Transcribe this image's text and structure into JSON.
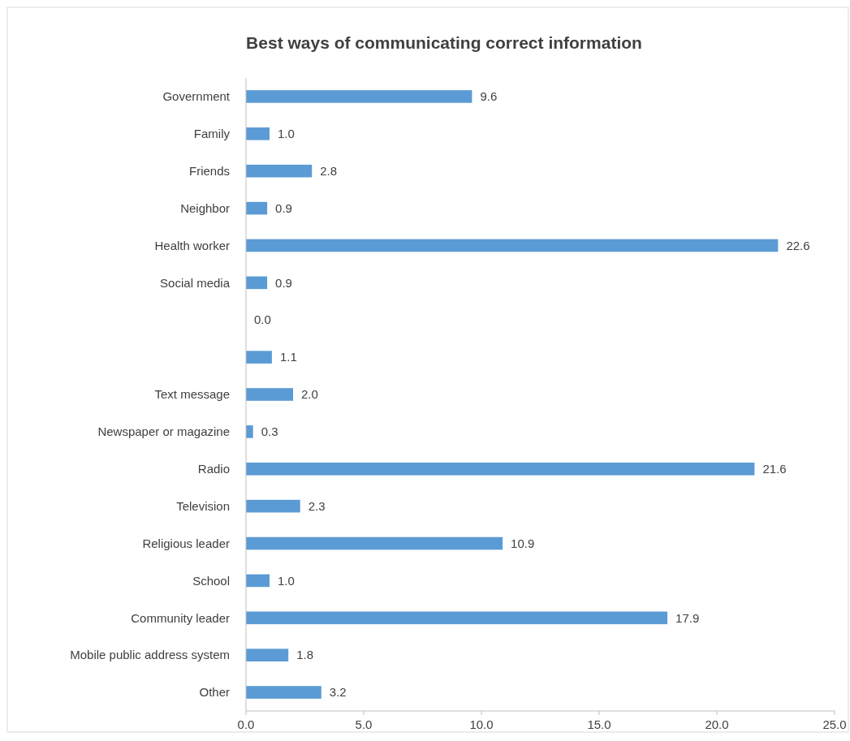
{
  "chart_data": {
    "type": "bar",
    "orientation": "horizontal",
    "title": "Best ways of communicating correct information",
    "categories": [
      "Government",
      "Family",
      "Friends",
      "Neighbor",
      "Health worker",
      "Social media",
      null,
      null,
      "Text message",
      "Newspaper or magazine",
      "Radio",
      "Television",
      "Religious leader",
      "School",
      "Community leader",
      "Mobile public address system",
      "Other"
    ],
    "values": [
      9.6,
      1.0,
      2.8,
      0.9,
      22.6,
      0.9,
      0.0,
      1.1,
      2.0,
      0.3,
      21.6,
      2.3,
      10.9,
      1.0,
      17.9,
      1.8,
      3.2
    ],
    "value_labels": [
      "9.6",
      "1.0",
      "2.8",
      "0.9",
      "22.6",
      "0.9",
      "0.0",
      "1.1",
      "2.0",
      "0.3",
      "21.6",
      "2.3",
      "10.9",
      "1.0",
      "17.9",
      "1.8",
      "3.2"
    ],
    "color": "#5b9bd5",
    "xlim": [
      0,
      25
    ],
    "xticks": [
      {
        "value": 0,
        "label": "0.0"
      },
      {
        "value": 5,
        "label": "5.0"
      },
      {
        "value": 10,
        "label": "10.0"
      },
      {
        "value": 15,
        "label": "15.0"
      },
      {
        "value": 20,
        "label": "20.0"
      },
      {
        "value": 25,
        "label": "25.0"
      }
    ],
    "grid": false
  }
}
